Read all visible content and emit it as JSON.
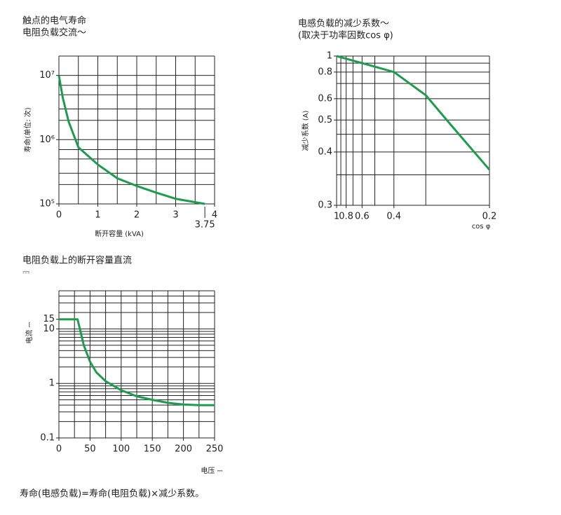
{
  "chart_data": [
    {
      "type": "line",
      "title": "触点的电气寿命",
      "subtitle": "电阻负载交流～",
      "y_label": "寿命(单位: 次)",
      "x_label": "断开容量 (kVA)",
      "x": [
        0,
        0.1,
        0.25,
        0.5,
        1,
        1.5,
        2,
        2.5,
        3,
        3.75
      ],
      "values": [
        10000000,
        4500000,
        1900000,
        760000,
        410000,
        250000,
        190000,
        150000,
        120000,
        100000
      ],
      "color": "#1a9e4b",
      "xlim": [
        0,
        4
      ],
      "xticks": [
        0,
        1,
        2,
        3,
        4
      ],
      "ylim": [
        100000,
        20000000
      ],
      "yscale": "log",
      "yticks": [
        {
          "value": 100000,
          "label": "10⁵"
        },
        {
          "value": 1000000,
          "label": "10⁶"
        },
        {
          "value": 10000000,
          "label": "10⁷"
        }
      ],
      "xgrid": [
        0,
        0.5,
        1,
        1.5,
        2,
        2.5,
        3,
        3.5,
        4
      ],
      "ygrid": [
        100000,
        200000,
        300000,
        500000,
        700000,
        1000000,
        2000000,
        3000000,
        5000000,
        7000000,
        10000000,
        20000000
      ],
      "annotations": [
        {
          "text": "3.75",
          "x": 3.75
        }
      ]
    },
    {
      "type": "line",
      "title": "电感负载的减少系数～",
      "subtitle": "(取决于功率因数cos φ)",
      "y_label": "减少系数 (A)",
      "x_label": "cos φ",
      "x": [
        1,
        0.8,
        0.6,
        0.4,
        0.3,
        0.25,
        0.2
      ],
      "values": [
        1,
        0.96,
        0.9,
        0.8,
        0.62,
        0.48,
        0.36
      ],
      "color": "#1a9e4b",
      "xlim": [
        1,
        0.2
      ],
      "xscale": "reciprocal",
      "xticks": [
        1,
        0.8,
        0.6,
        0.4,
        0.2
      ],
      "ylim": [
        0.3,
        1
      ],
      "yscale": "reciprocal",
      "yticks": [
        1,
        0.8,
        0.6,
        0.5,
        0.4,
        0.3
      ],
      "xgrid": [
        1,
        0.9,
        0.8,
        0.7,
        0.6,
        0.5,
        0.4,
        0.3,
        0.2
      ],
      "ygrid": [
        1,
        0.9,
        0.8,
        0.7,
        0.6,
        0.5,
        0.45,
        0.4,
        0.35,
        0.3
      ]
    },
    {
      "type": "line",
      "title": "电阻负载上的断开容量直流",
      "subtitle": "⎓",
      "y_label": "电流 ⎓",
      "x_label": "电压 ⎓",
      "x": [
        0,
        30,
        40,
        50,
        60,
        75,
        100,
        125,
        150,
        175,
        200,
        225,
        250
      ],
      "values": [
        15,
        15,
        5,
        2.5,
        1.6,
        1.1,
        0.75,
        0.58,
        0.5,
        0.44,
        0.41,
        0.4,
        0.4
      ],
      "color": "#1a9e4b",
      "xlim": [
        0,
        250
      ],
      "xticks": [
        0,
        50,
        100,
        150,
        200,
        250
      ],
      "ylim": [
        0.1,
        50
      ],
      "yscale": "log",
      "yticks": [
        0.1,
        1,
        10,
        15
      ],
      "xgrid": [
        0,
        25,
        50,
        75,
        100,
        125,
        150,
        175,
        200,
        225,
        250
      ],
      "ygrid": [
        0.1,
        0.2,
        0.3,
        0.4,
        0.5,
        0.6,
        0.7,
        0.8,
        0.9,
        1,
        2,
        3,
        4,
        5,
        6,
        7,
        8,
        9,
        10,
        20,
        30,
        40,
        50
      ]
    }
  ],
  "footnote": "寿命(电感负载)=寿命(电阻负载)×减少系数。"
}
